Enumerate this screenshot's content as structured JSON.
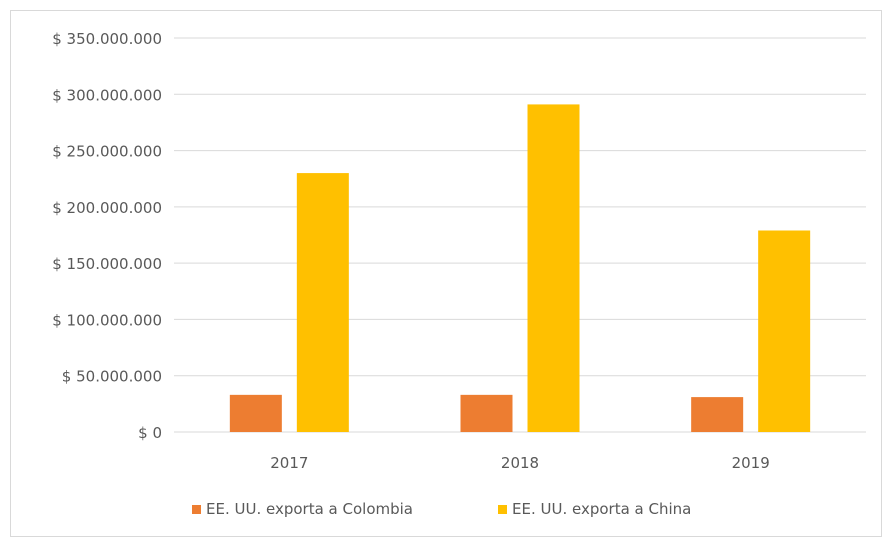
{
  "chart_data": {
    "type": "bar",
    "title": "",
    "xlabel": "",
    "ylabel": "",
    "categories": [
      "2017",
      "2018",
      "2019"
    ],
    "series": [
      {
        "name": "EE. UU. exporta a Colombia",
        "color": "#ed7d31",
        "values": [
          33000000,
          33000000,
          31000000
        ]
      },
      {
        "name": "EE. UU. exporta a China",
        "color": "#ffc000",
        "values": [
          230000000,
          291000000,
          179000000
        ]
      }
    ],
    "ylim": [
      0,
      350000000
    ],
    "yticks": [
      0,
      50000000,
      100000000,
      150000000,
      200000000,
      250000000,
      300000000,
      350000000
    ],
    "ytick_labels": [
      "$ 0",
      "$ 50.000.000",
      "$ 100.000.000",
      "$ 150.000.000",
      "$ 200.000.000",
      "$ 250.000.000",
      "$ 300.000.000",
      "$ 350.000.000"
    ],
    "grid": true,
    "legend_position": "bottom",
    "gridline_color": "#d9d9d9"
  }
}
